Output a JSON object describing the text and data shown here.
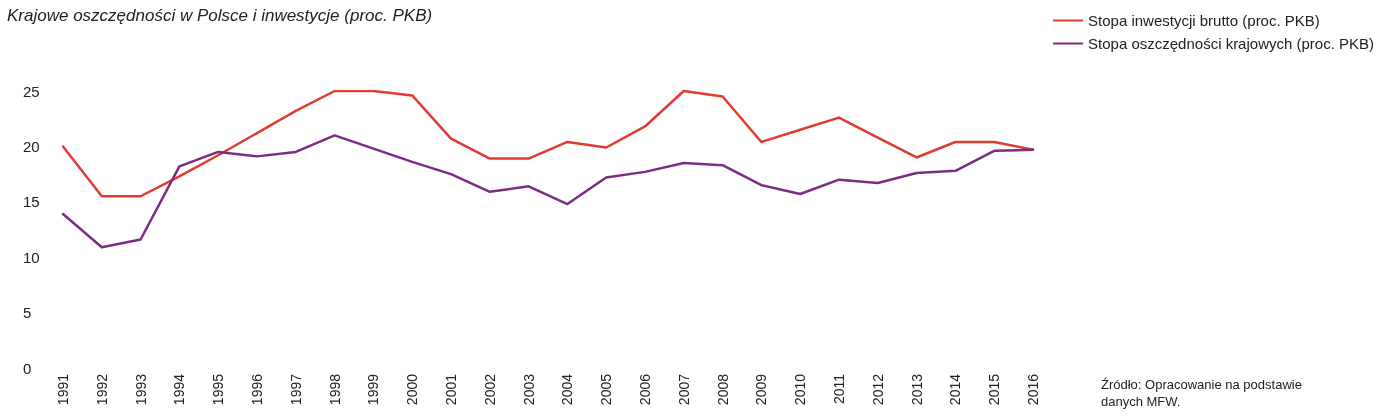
{
  "chart_data": {
    "type": "line",
    "title": "Krajowe oszczędności w Polsce i inwestycje (proc. PKB)",
    "categories": [
      "1991",
      "1992",
      "1993",
      "1994",
      "1995",
      "1996",
      "1997",
      "1998",
      "1999",
      "2000",
      "2001",
      "2002",
      "2003",
      "2004",
      "2005",
      "2006",
      "2007",
      "2008",
      "2009",
      "2010",
      "2011",
      "2012",
      "2013",
      "2014",
      "2015",
      "2016"
    ],
    "series": [
      {
        "name": "Stopa inwestycji brutto (proc. PKB)",
        "color": "#e03c31",
        "values": [
          20,
          15.5,
          15.5,
          17.3,
          19.2,
          21.2,
          23.2,
          25,
          25,
          24.6,
          20.7,
          18.9,
          18.9,
          20.4,
          19.9,
          21.8,
          25,
          24.5,
          20.4,
          21.5,
          22.6,
          20.8,
          19.0,
          20.4,
          20.4,
          19.7
        ]
      },
      {
        "name": "Stopa oszczędności krajowych (proc. PKB)",
        "color": "#7b2c83",
        "values": [
          13.9,
          10.9,
          11.6,
          18.2,
          19.5,
          19.1,
          19.5,
          21.0,
          19.8,
          18.6,
          17.5,
          15.9,
          16.4,
          14.8,
          17.2,
          17.7,
          18.5,
          18.3,
          16.5,
          15.7,
          17.0,
          16.7,
          17.6,
          17.8,
          19.6,
          19.7
        ]
      }
    ],
    "ylim": [
      0,
      25
    ],
    "yticks": [
      0,
      5,
      10,
      15,
      20,
      25
    ],
    "grid": false,
    "legend": "top right",
    "marker": "none",
    "line_style": "solid",
    "annotations": [
      "Źródło: Opracowanie na podstawie danych MFW."
    ]
  }
}
